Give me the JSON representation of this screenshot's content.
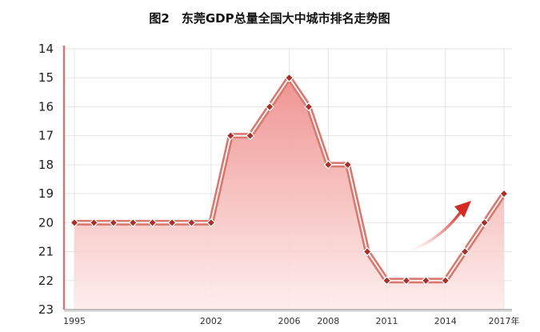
{
  "chart_data": {
    "type": "area",
    "title": "图2　东莞GDP总量全国大中城市排名走势图",
    "xlabel": "",
    "ylabel": "",
    "x": [
      1995,
      1996,
      1997,
      1998,
      1999,
      2000,
      2001,
      2002,
      2003,
      2004,
      2005,
      2006,
      2007,
      2008,
      2009,
      2010,
      2011,
      2012,
      2013,
      2014,
      2015,
      2016,
      2017
    ],
    "values": [
      20,
      20,
      20,
      20,
      20,
      20,
      20,
      20,
      17,
      17,
      16,
      15,
      16,
      18,
      18,
      21,
      22,
      22,
      22,
      22,
      21,
      20,
      19
    ],
    "ylim": [
      14,
      23
    ],
    "y_inverted": true,
    "y_ticks": [
      "14",
      "15",
      "16",
      "17",
      "18",
      "19",
      "20",
      "21",
      "22",
      "23"
    ],
    "x_tick_labels": [
      {
        "x": 1995,
        "label": "1995"
      },
      {
        "x": 2002,
        "label": "2002"
      },
      {
        "x": 2006,
        "label": "2006"
      },
      {
        "x": 2008,
        "label": "2008"
      },
      {
        "x": 2011,
        "label": "2011"
      },
      {
        "x": 2014,
        "label": "2014"
      },
      {
        "x": 2017,
        "label": "2017年"
      }
    ],
    "grid": true,
    "colors": {
      "line": "#d9786f",
      "fill_top": "#ee8f8c",
      "fill_bottom": "#fdeceb",
      "marker": "#a9302a",
      "arrow": "#d42a24",
      "axis": "#c97a7a"
    }
  }
}
